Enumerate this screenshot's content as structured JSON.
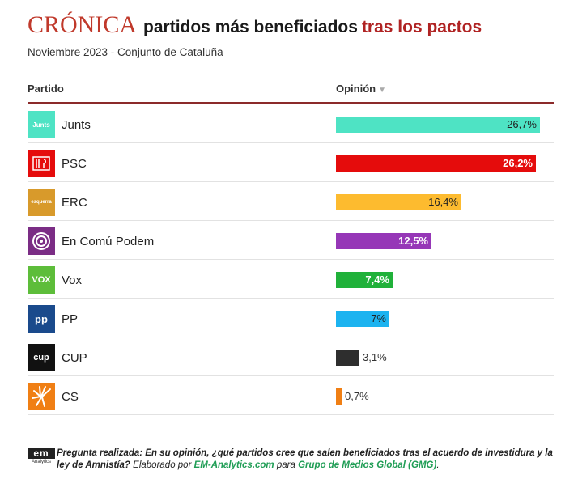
{
  "header": {
    "logo": "CRÓNICA",
    "title_black": "partidos más beneficiados",
    "title_red": "tras los pactos",
    "subtitle": "Noviembre 2023 - Conjunto de Cataluña"
  },
  "columns": {
    "party": "Partido",
    "opinion": "Opinión"
  },
  "colors": {
    "accent": "#b02323",
    "rule": "#8b2a2a"
  },
  "chart_data": {
    "type": "bar",
    "title": "partidos más beneficiados tras los pactos",
    "subtitle": "Noviembre 2023 - Conjunto de Cataluña",
    "xlabel": "Opinión",
    "ylabel": "Partido",
    "xlim": [
      0,
      27
    ],
    "categories": [
      "Junts",
      "PSC",
      "ERC",
      "En Comú Podem",
      "Vox",
      "PP",
      "CUP",
      "CS"
    ],
    "values": [
      26.7,
      26.2,
      16.4,
      12.5,
      7.4,
      7,
      3.1,
      0.7
    ],
    "labels": [
      "26,7%",
      "26,2%",
      "16,4%",
      "12,5%",
      "7,4%",
      "7%",
      "3,1%",
      "0,7%"
    ],
    "colors": [
      "#4ee3c4",
      "#e50c0c",
      "#fdbb2f",
      "#9637b7",
      "#20b13a",
      "#1cb3f0",
      "#2e2e2e",
      "#f07f14"
    ],
    "label_colors": [
      "#222222",
      "#ffffff",
      "#222222",
      "#ffffff",
      "#ffffff",
      "#222222",
      "#333333",
      "#333333"
    ],
    "icons": [
      {
        "name": "junts-icon",
        "bg": "#4ee3c4",
        "text": "Junts"
      },
      {
        "name": "psc-icon",
        "bg": "#e50c0c",
        "text": ""
      },
      {
        "name": "erc-icon",
        "bg": "#d89a2b",
        "text": "esquerra"
      },
      {
        "name": "comu-podem-icon",
        "bg": "#7b2d85",
        "text": ""
      },
      {
        "name": "vox-icon",
        "bg": "#5dbd3a",
        "text": "VOX"
      },
      {
        "name": "pp-icon",
        "bg": "#1a4a8c",
        "text": "pp"
      },
      {
        "name": "cup-icon",
        "bg": "#111111",
        "text": "cup"
      },
      {
        "name": "cs-icon",
        "bg": "#f07f14",
        "text": ""
      }
    ]
  },
  "footer": {
    "logo_top": "em",
    "logo_bottom": "Analytics",
    "question": "Pregunta realizada: En su opinión, ¿qué partidos cree que salen beneficiados tras el acuerdo de investidura y la ley de Amnistía?",
    "elaborated": " Elaborado por ",
    "em_link": "EM-Analytics.com",
    "para": " para ",
    "gmg": "Grupo de Medios Global (GMG)",
    "end": "."
  }
}
